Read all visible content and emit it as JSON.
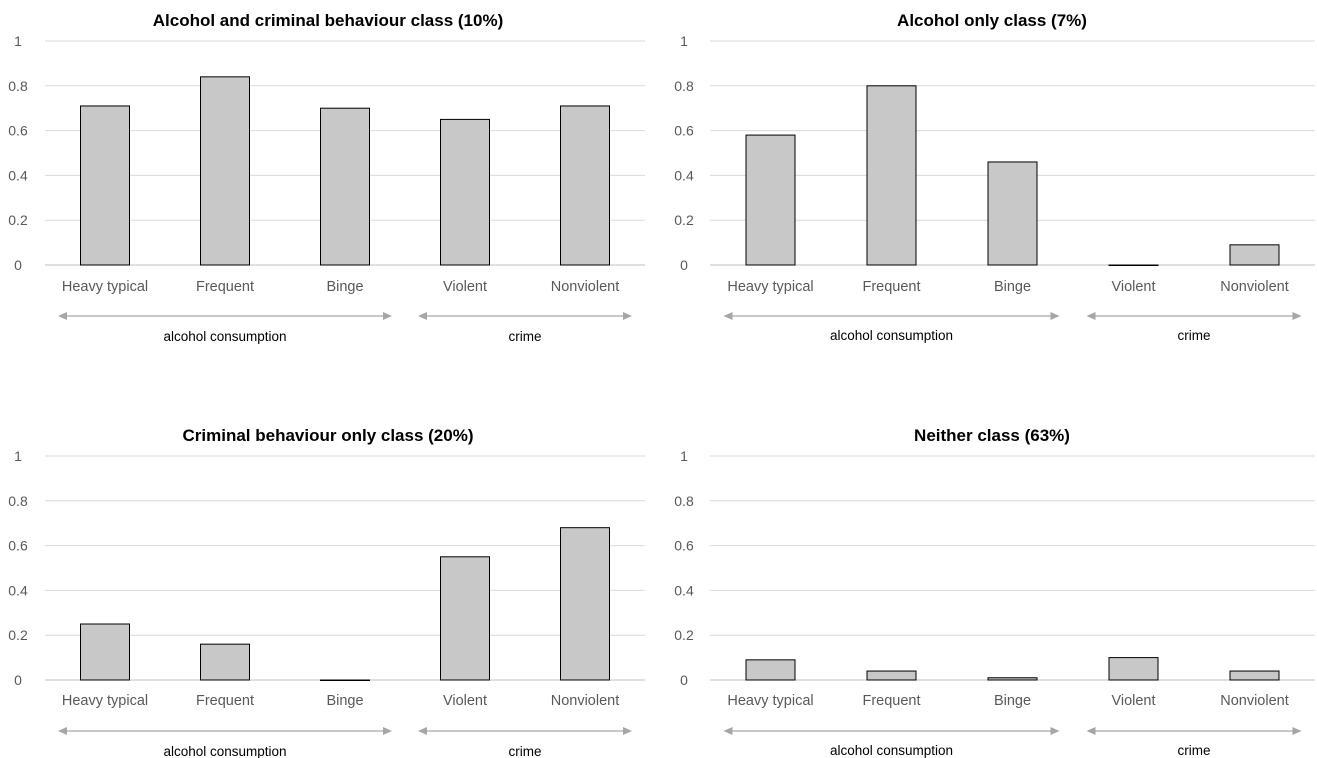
{
  "chart_data": [
    {
      "type": "bar",
      "title": "Alcohol and criminal behaviour class (10%)",
      "categories": [
        "Heavy typical",
        "Frequent",
        "Binge",
        "Violent",
        "Nonviolent"
      ],
      "values": [
        0.71,
        0.84,
        0.7,
        0.65,
        0.71
      ],
      "ylim": [
        0,
        1
      ],
      "yticks": [
        "0",
        "0.2",
        "0.4",
        "0.6",
        "0.8",
        "1"
      ],
      "grid": true,
      "groups": [
        {
          "label": "alcohol consumption",
          "from": 0,
          "to": 2
        },
        {
          "label": "crime",
          "from": 3,
          "to": 4
        }
      ]
    },
    {
      "type": "bar",
      "title": "Alcohol only class (7%)",
      "categories": [
        "Heavy typical",
        "Frequent",
        "Binge",
        "Violent",
        "Nonviolent"
      ],
      "values": [
        0.58,
        0.8,
        0.46,
        0.0,
        0.09
      ],
      "ylim": [
        0,
        1
      ],
      "yticks": [
        "0",
        "0.2",
        "0.4",
        "0.6",
        "0.8",
        "1"
      ],
      "grid": true,
      "groups": [
        {
          "label": "alcohol consumption",
          "from": 0,
          "to": 2
        },
        {
          "label": "crime",
          "from": 3,
          "to": 4
        }
      ]
    },
    {
      "type": "bar",
      "title": "Criminal behaviour only class (20%)",
      "categories": [
        "Heavy typical",
        "Frequent",
        "Binge",
        "Violent",
        "Nonviolent"
      ],
      "values": [
        0.25,
        0.16,
        0.0,
        0.55,
        0.68
      ],
      "ylim": [
        0,
        1
      ],
      "yticks": [
        "0",
        "0.2",
        "0.4",
        "0.6",
        "0.8",
        "1"
      ],
      "grid": true,
      "groups": [
        {
          "label": "alcohol consumption",
          "from": 0,
          "to": 2
        },
        {
          "label": "crime",
          "from": 3,
          "to": 4
        }
      ]
    },
    {
      "type": "bar",
      "title": "Neither class (63%)",
      "categories": [
        "Heavy typical",
        "Frequent",
        "Binge",
        "Violent",
        "Nonviolent"
      ],
      "values": [
        0.09,
        0.04,
        0.01,
        0.1,
        0.04
      ],
      "ylim": [
        0,
        1
      ],
      "yticks": [
        "0",
        "0.2",
        "0.4",
        "0.6",
        "0.8",
        "1"
      ],
      "grid": true,
      "groups": [
        {
          "label": "alcohol consumption",
          "from": 0,
          "to": 2
        },
        {
          "label": "crime",
          "from": 3,
          "to": 4
        }
      ]
    }
  ],
  "colors": {
    "bar_fill": "#c8c8c8",
    "bar_stroke": "#000000",
    "gridline": "#d9d9d9",
    "arrow": "#a6a6a6",
    "tick_text": "#595959"
  }
}
